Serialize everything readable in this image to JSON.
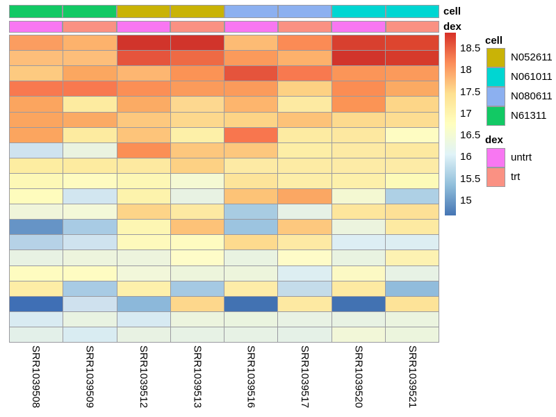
{
  "chart_data": {
    "type": "heatmap",
    "title": "",
    "columns": [
      "SRR1039508",
      "SRR1039509",
      "SRR1039512",
      "SRR1039513",
      "SRR1039516",
      "SRR1039517",
      "SRR1039520",
      "SRR1039521"
    ],
    "n_rows": 20,
    "n_cols": 8,
    "annotation_row_labels": {
      "cell": "cell",
      "dex": "dex"
    },
    "column_annotations": {
      "cell": [
        "N61311",
        "N61311",
        "N052611",
        "N052611",
        "N080611",
        "N080611",
        "N061011",
        "N061011"
      ],
      "dex": [
        "untrt",
        "trt",
        "untrt",
        "trt",
        "untrt",
        "trt",
        "untrt",
        "trt"
      ]
    },
    "annotation_colors": {
      "cell": {
        "N052611": "#c9b306",
        "N061011": "#00d6d2",
        "N080611": "#8cb0f0",
        "N61311": "#12c964"
      },
      "dex": {
        "untrt": "#f877f2",
        "trt": "#fa9183"
      }
    },
    "legends": {
      "cell_title": "cell",
      "cell_items": [
        {
          "label": "N052611",
          "color": "#c9b306"
        },
        {
          "label": "N061011",
          "color": "#00d6d2"
        },
        {
          "label": "N080611",
          "color": "#8cb0f0"
        },
        {
          "label": "N61311",
          "color": "#12c964"
        }
      ],
      "dex_title": "dex",
      "dex_items": [
        {
          "label": "untrt",
          "color": "#f877f2"
        },
        {
          "label": "trt",
          "color": "#fa9183"
        }
      ]
    },
    "colorbar": {
      "ticks": [
        "18.5",
        "18",
        "17.5",
        "17",
        "16.5",
        "16",
        "15.5",
        "15"
      ],
      "tick_values": [
        18.5,
        18,
        17.5,
        17,
        16.5,
        16,
        15.5,
        15
      ],
      "gradient_top_to_bottom": [
        "#d73027",
        "#fc8d59",
        "#fee090",
        "#ffffbf",
        "#e0f3f8",
        "#91bfdb",
        "#4575b4"
      ],
      "scale_domain_approx": [
        14.7,
        18.9
      ]
    },
    "cell_colors": [
      [
        "#fb9d60",
        "#fdb26c",
        "#d1342b",
        "#d1342b",
        "#fdbb74",
        "#fb8b55",
        "#d8402f",
        "#dd452f"
      ],
      [
        "#fdbe7a",
        "#fdbe7a",
        "#e5543c",
        "#ee6a44",
        "#fb9a5b",
        "#fdb16b",
        "#d1342b",
        "#d63a2b"
      ],
      [
        "#fdca80",
        "#fba760",
        "#fdb671",
        "#fb9355",
        "#e5543c",
        "#f8794f",
        "#fb9558",
        "#fb9a5b"
      ],
      [
        "#f8794f",
        "#f8794f",
        "#fb8f55",
        "#fb9b5b",
        "#fb9b5b",
        "#fdd183",
        "#fb8d53",
        "#fbaa63"
      ],
      [
        "#fba55f",
        "#fdeba0",
        "#fbab64",
        "#fdd890",
        "#fdb56d",
        "#fdeaa2",
        "#fb9455",
        "#fdd688"
      ],
      [
        "#fba55f",
        "#fbaa64",
        "#fdc87e",
        "#fdd88d",
        "#fdd486",
        "#fdc278",
        "#fdda8e",
        "#fddd92"
      ],
      [
        "#fba55f",
        "#fdeba0",
        "#fdc47a",
        "#fdf0a8",
        "#f8764e",
        "#fdeba2",
        "#fde8a0",
        "#fefcc2"
      ],
      [
        "#cfe3ef",
        "#eaf3e0",
        "#fb8f55",
        "#fdc77d",
        "#fdc77d",
        "#fdeea6",
        "#fdeaa4",
        "#fde9a0"
      ],
      [
        "#fdeda1",
        "#fdeba0",
        "#fde9a0",
        "#fdd184",
        "#fdeaa4",
        "#fdeba4",
        "#fdeba6",
        "#fdeba6"
      ],
      [
        "#fdf8b6",
        "#fefbc0",
        "#fdf7b5",
        "#f5f9d3",
        "#fde49a",
        "#fdeea8",
        "#fdf0aa",
        "#fdfab8"
      ],
      [
        "#fefcbd",
        "#d2e6f0",
        "#fdf3ac",
        "#e8f2e3",
        "#fdc377",
        "#fba763",
        "#f4f8d2",
        "#aed0e5"
      ],
      [
        "#f0f5da",
        "#f4f8d8",
        "#fdd488",
        "#fde9a2",
        "#a8cce2",
        "#e6f1e6",
        "#fde69c",
        "#fde096"
      ],
      [
        "#6694c6",
        "#a8cbe4",
        "#fdf6b3",
        "#fdc278",
        "#9cc4e0",
        "#fdc87e",
        "#ecf4de",
        "#fdeaa2"
      ],
      [
        "#b6d2e7",
        "#cfe3ef",
        "#fef9bc",
        "#fefbc0",
        "#fdda8e",
        "#fde9a4",
        "#ddeef4",
        "#ddeef2"
      ],
      [
        "#e8f2e3",
        "#edf4dd",
        "#edf4dd",
        "#fefcc8",
        "#e9f3e1",
        "#fefbc8",
        "#e9f3e1",
        "#fdf2b2"
      ],
      [
        "#fefcc0",
        "#fefcc2",
        "#f2f7da",
        "#edf5dc",
        "#edf5dc",
        "#ddeef2",
        "#fcf9c4",
        "#e7f2e5"
      ],
      [
        "#fdeda6",
        "#a8cbe4",
        "#fdf0ab",
        "#a5c9e3",
        "#fdeca8",
        "#c4dcea",
        "#fdeaa2",
        "#91bcdc"
      ],
      [
        "#3f6fb5",
        "#cfe1ee",
        "#8cb8da",
        "#fdd78c",
        "#4272b2",
        "#fde9a2",
        "#4272b2",
        "#fde398"
      ],
      [
        "#d9ebf2",
        "#e9f3e2",
        "#d7eaf2",
        "#ecf4de",
        "#eaf4df",
        "#e8f2e4",
        "#e8f2e3",
        "#ebf4df"
      ],
      [
        "#e3f0e9",
        "#d9ecf2",
        "#e8f2e3",
        "#e7f2e5",
        "#e7f2e5",
        "#e5f1e7",
        "#f2f7d8",
        "#ecf5dd"
      ]
    ],
    "values_estimated": [
      [
        17.8,
        17.65,
        18.6,
        18.6,
        17.6,
        17.95,
        18.5,
        18.45
      ],
      [
        17.55,
        17.55,
        18.35,
        18.2,
        17.8,
        17.7,
        18.6,
        18.55
      ],
      [
        17.5,
        17.75,
        17.6,
        17.9,
        18.35,
        18.1,
        17.9,
        17.8
      ],
      [
        18.1,
        18.1,
        17.9,
        17.8,
        17.8,
        17.4,
        17.95,
        17.7
      ],
      [
        17.75,
        17.1,
        17.7,
        17.35,
        17.65,
        17.1,
        17.9,
        17.35
      ],
      [
        17.75,
        17.7,
        17.5,
        17.35,
        17.4,
        17.55,
        17.3,
        17.25
      ],
      [
        17.75,
        17.1,
        17.5,
        17.0,
        18.1,
        17.1,
        17.15,
        16.75
      ],
      [
        15.9,
        16.25,
        17.9,
        17.5,
        17.5,
        17.05,
        17.1,
        17.15
      ],
      [
        17.1,
        17.1,
        17.15,
        17.4,
        17.1,
        17.1,
        17.1,
        17.1
      ],
      [
        16.9,
        16.75,
        16.9,
        16.45,
        17.2,
        17.05,
        17.0,
        16.85
      ],
      [
        16.75,
        15.9,
        16.95,
        16.3,
        17.55,
        17.7,
        16.55,
        15.6
      ],
      [
        16.4,
        16.45,
        17.4,
        17.15,
        15.65,
        16.25,
        17.2,
        17.25
      ],
      [
        15.1,
        15.6,
        16.9,
        17.55,
        15.5,
        17.5,
        16.3,
        17.1
      ],
      [
        15.7,
        15.9,
        16.8,
        16.75,
        17.3,
        17.15,
        16.0,
        16.0
      ],
      [
        16.3,
        16.3,
        16.3,
        16.7,
        16.25,
        16.7,
        16.25,
        16.95
      ],
      [
        16.75,
        16.75,
        16.45,
        16.3,
        16.3,
        16.0,
        16.6,
        16.2
      ],
      [
        17.1,
        15.6,
        17.0,
        15.6,
        17.05,
        15.8,
        17.1,
        15.4
      ],
      [
        14.75,
        15.9,
        15.35,
        17.35,
        14.75,
        17.1,
        14.75,
        17.2
      ],
      [
        16.0,
        16.25,
        16.0,
        16.3,
        16.25,
        16.25,
        16.25,
        16.25
      ],
      [
        16.2,
        16.0,
        16.3,
        16.2,
        16.2,
        16.2,
        16.55,
        16.3
      ]
    ],
    "layout": {
      "grid_lines": true,
      "grid_line_color": "#9a9aa0",
      "legend_position": "right"
    }
  }
}
